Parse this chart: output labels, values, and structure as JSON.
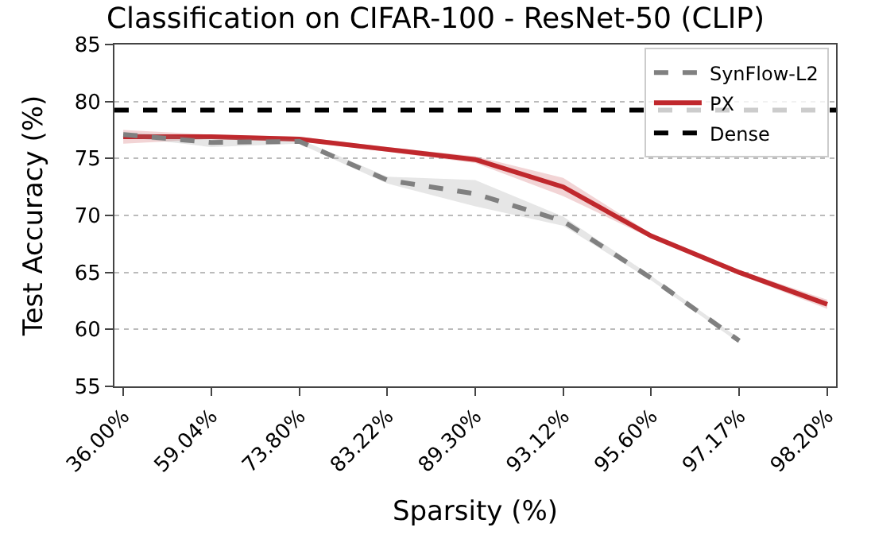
{
  "chart_data": {
    "type": "line",
    "title": "Classification on CIFAR-100 - ResNet-50 (CLIP)",
    "xlabel": "Sparsity (%)",
    "ylabel": "Test Accuracy (%)",
    "categories": [
      "36.00%",
      "59.04%",
      "73.80%",
      "83.22%",
      "89.30%",
      "93.12%",
      "95.60%",
      "97.17%",
      "98.20%"
    ],
    "series": [
      {
        "name": "PX",
        "color": "#c0282d",
        "line_style": "solid",
        "values": [
          76.9,
          76.9,
          76.7,
          75.8,
          74.9,
          72.5,
          68.2,
          65.0,
          62.2
        ],
        "lower": [
          76.3,
          76.7,
          76.5,
          75.6,
          74.6,
          71.7,
          68.0,
          64.8,
          61.8
        ],
        "upper": [
          77.5,
          77.1,
          76.9,
          76.0,
          75.2,
          73.3,
          68.4,
          65.2,
          62.6
        ]
      },
      {
        "name": "SynFlow-L2",
        "color": "#808080",
        "line_style": "dashed",
        "values": [
          77.1,
          76.4,
          76.5,
          73.1,
          71.9,
          69.5,
          64.5,
          59.0,
          null
        ],
        "lower": [
          76.9,
          76.0,
          76.3,
          72.8,
          70.8,
          69.1,
          64.3,
          58.8,
          null
        ],
        "upper": [
          77.3,
          76.8,
          76.7,
          73.4,
          73.1,
          69.9,
          64.7,
          59.2,
          null
        ]
      }
    ],
    "ref_lines": [
      {
        "axis": "y",
        "value": 79.25,
        "label": "Dense",
        "color": "#000000",
        "line_style": "dashed"
      }
    ],
    "ylim": [
      55,
      85
    ],
    "yticks": [
      55,
      60,
      65,
      70,
      75,
      80,
      85
    ],
    "grid": "y",
    "legend": "top right",
    "marker": "none"
  }
}
